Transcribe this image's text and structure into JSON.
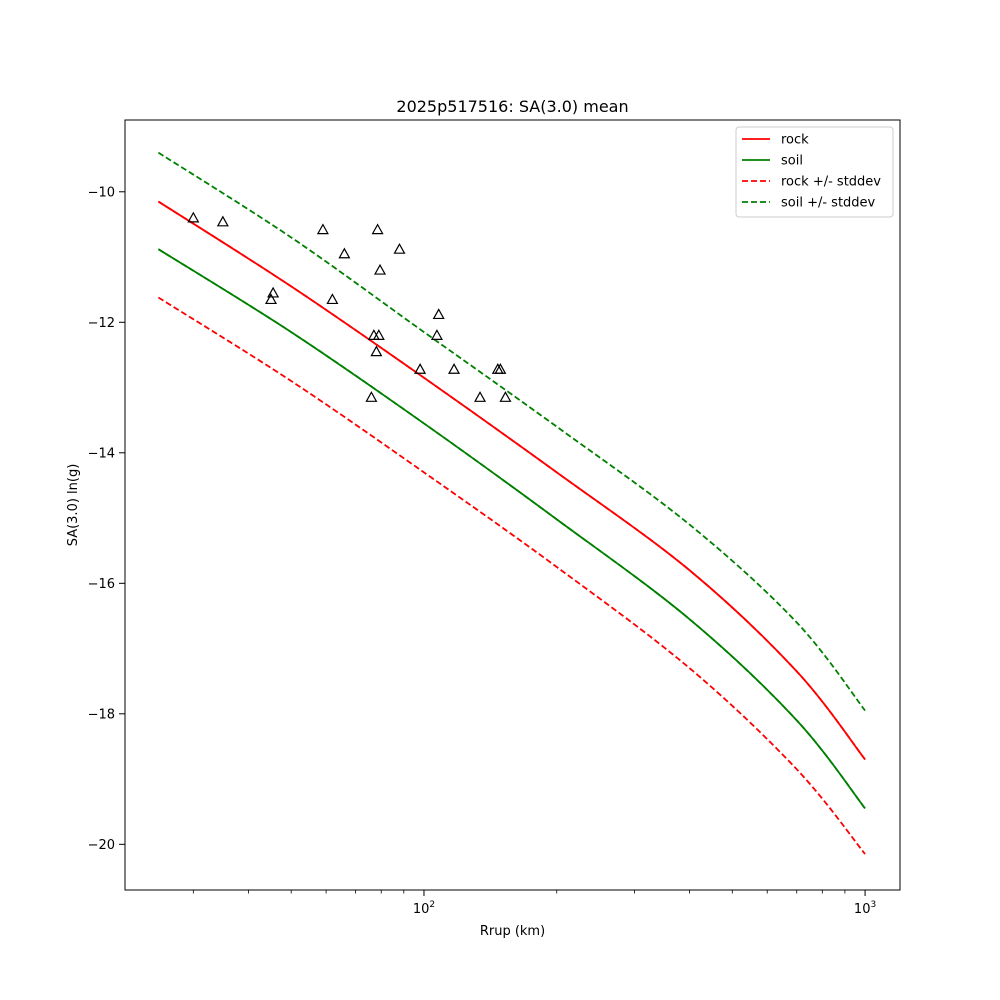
{
  "chart_data": {
    "type": "line",
    "title": "2025p517516: SA(3.0) mean",
    "xlabel": "Rrup (km)",
    "ylabel": "SA(3.0) ln(g)",
    "xscale": "log",
    "xlim": [
      21,
      1200
    ],
    "ylim": [
      -20.7,
      -8.9
    ],
    "x_ticks": [
      {
        "value": 100,
        "base": "10",
        "exp": "2"
      },
      {
        "value": 1000,
        "base": "10",
        "exp": "3"
      }
    ],
    "y_ticks": [
      -10,
      -12,
      -14,
      -16,
      -18,
      -20
    ],
    "y_tick_labels": [
      "−10",
      "−12",
      "−14",
      "−16",
      "−18",
      "−20"
    ],
    "legend_position": "top-right",
    "colors": {
      "rock": "#d62728",
      "soil": "#008000",
      "markers": "#000000"
    },
    "series": [
      {
        "name": "rock",
        "style": "solid",
        "color": "#ff0000",
        "x": [
          25,
          50,
          100,
          200,
          400,
          700,
          1000
        ],
        "values": [
          -10.15,
          -11.45,
          -12.85,
          -14.3,
          -15.8,
          -17.35,
          -18.7
        ]
      },
      {
        "name": "soil",
        "style": "solid",
        "color": "#008000",
        "x": [
          25,
          50,
          100,
          200,
          400,
          700,
          1000
        ],
        "values": [
          -10.88,
          -12.15,
          -13.55,
          -15.02,
          -16.55,
          -18.1,
          -19.45
        ]
      },
      {
        "name": "rock +/- stddev",
        "style": "dashed",
        "color": "#ff0000",
        "x": [
          25,
          50,
          100,
          200,
          400,
          700,
          1000
        ],
        "values": [
          -11.62,
          -12.9,
          -14.3,
          -15.75,
          -17.3,
          -18.85,
          -20.15
        ]
      },
      {
        "name": "rock +/- stddev",
        "style": "dashed",
        "color": "#ff0000",
        "x": [
          25,
          50,
          100,
          200,
          400,
          700,
          1000
        ],
        "values": [
          -10.15,
          -11.45,
          -12.85,
          -14.3,
          -15.8,
          -17.35,
          -18.7
        ],
        "hide_in_legend": true
      },
      {
        "name": "soil +/- stddev",
        "style": "dashed",
        "color": "#008000",
        "x": [
          25,
          50,
          100,
          200,
          400,
          700,
          1000
        ],
        "values": [
          -9.4,
          -10.7,
          -12.15,
          -13.6,
          -15.1,
          -16.6,
          -17.95
        ]
      },
      {
        "name": "soil +/- stddev",
        "style": "dashed",
        "color": "#008000",
        "x": [
          25,
          50,
          100,
          200,
          400,
          700,
          1000
        ],
        "values": [
          -10.88,
          -12.15,
          -13.55,
          -15.02,
          -16.55,
          -18.1,
          -19.45
        ],
        "hide_in_legend": true
      }
    ],
    "observations": {
      "marker": "triangle",
      "x": [
        30,
        35,
        45,
        45.5,
        59,
        62,
        66,
        76,
        77,
        78,
        78.5,
        79,
        79.5,
        88,
        98,
        107,
        108,
        117,
        134,
        147,
        149,
        153
      ],
      "values": [
        -10.4,
        -10.46,
        -11.65,
        -11.55,
        -10.58,
        -11.65,
        -10.95,
        -13.15,
        -12.2,
        -12.45,
        -10.58,
        -12.2,
        -11.2,
        -10.88,
        -12.72,
        -12.2,
        -11.88,
        -12.72,
        -13.15,
        -12.72,
        -12.72,
        -13.15
      ]
    }
  }
}
